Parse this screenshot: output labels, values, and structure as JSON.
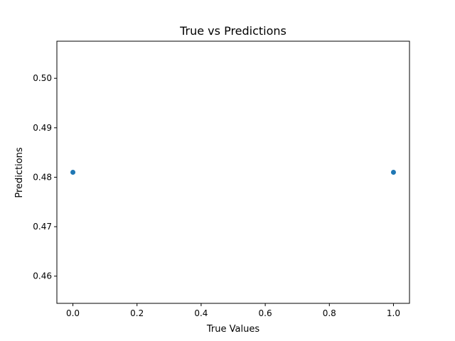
{
  "chart_data": {
    "type": "scatter",
    "title": "True vs Predictions",
    "xlabel": "True Values",
    "ylabel": "Predictions",
    "xlim": [
      -0.05,
      1.05
    ],
    "ylim": [
      0.4545,
      0.5075
    ],
    "xticks": [
      0.0,
      0.2,
      0.4,
      0.6,
      0.8,
      1.0
    ],
    "xtick_labels": [
      "0.0",
      "0.2",
      "0.4",
      "0.6",
      "0.8",
      "1.0"
    ],
    "yticks": [
      0.46,
      0.47,
      0.48,
      0.49,
      0.5
    ],
    "ytick_labels": [
      "0.46",
      "0.47",
      "0.48",
      "0.49",
      "0.50"
    ],
    "grid": false,
    "series": [
      {
        "color": "#1f77b4",
        "points": [
          {
            "x": 0.0,
            "y": 0.481
          },
          {
            "x": 1.0,
            "y": 0.481
          }
        ]
      }
    ]
  }
}
